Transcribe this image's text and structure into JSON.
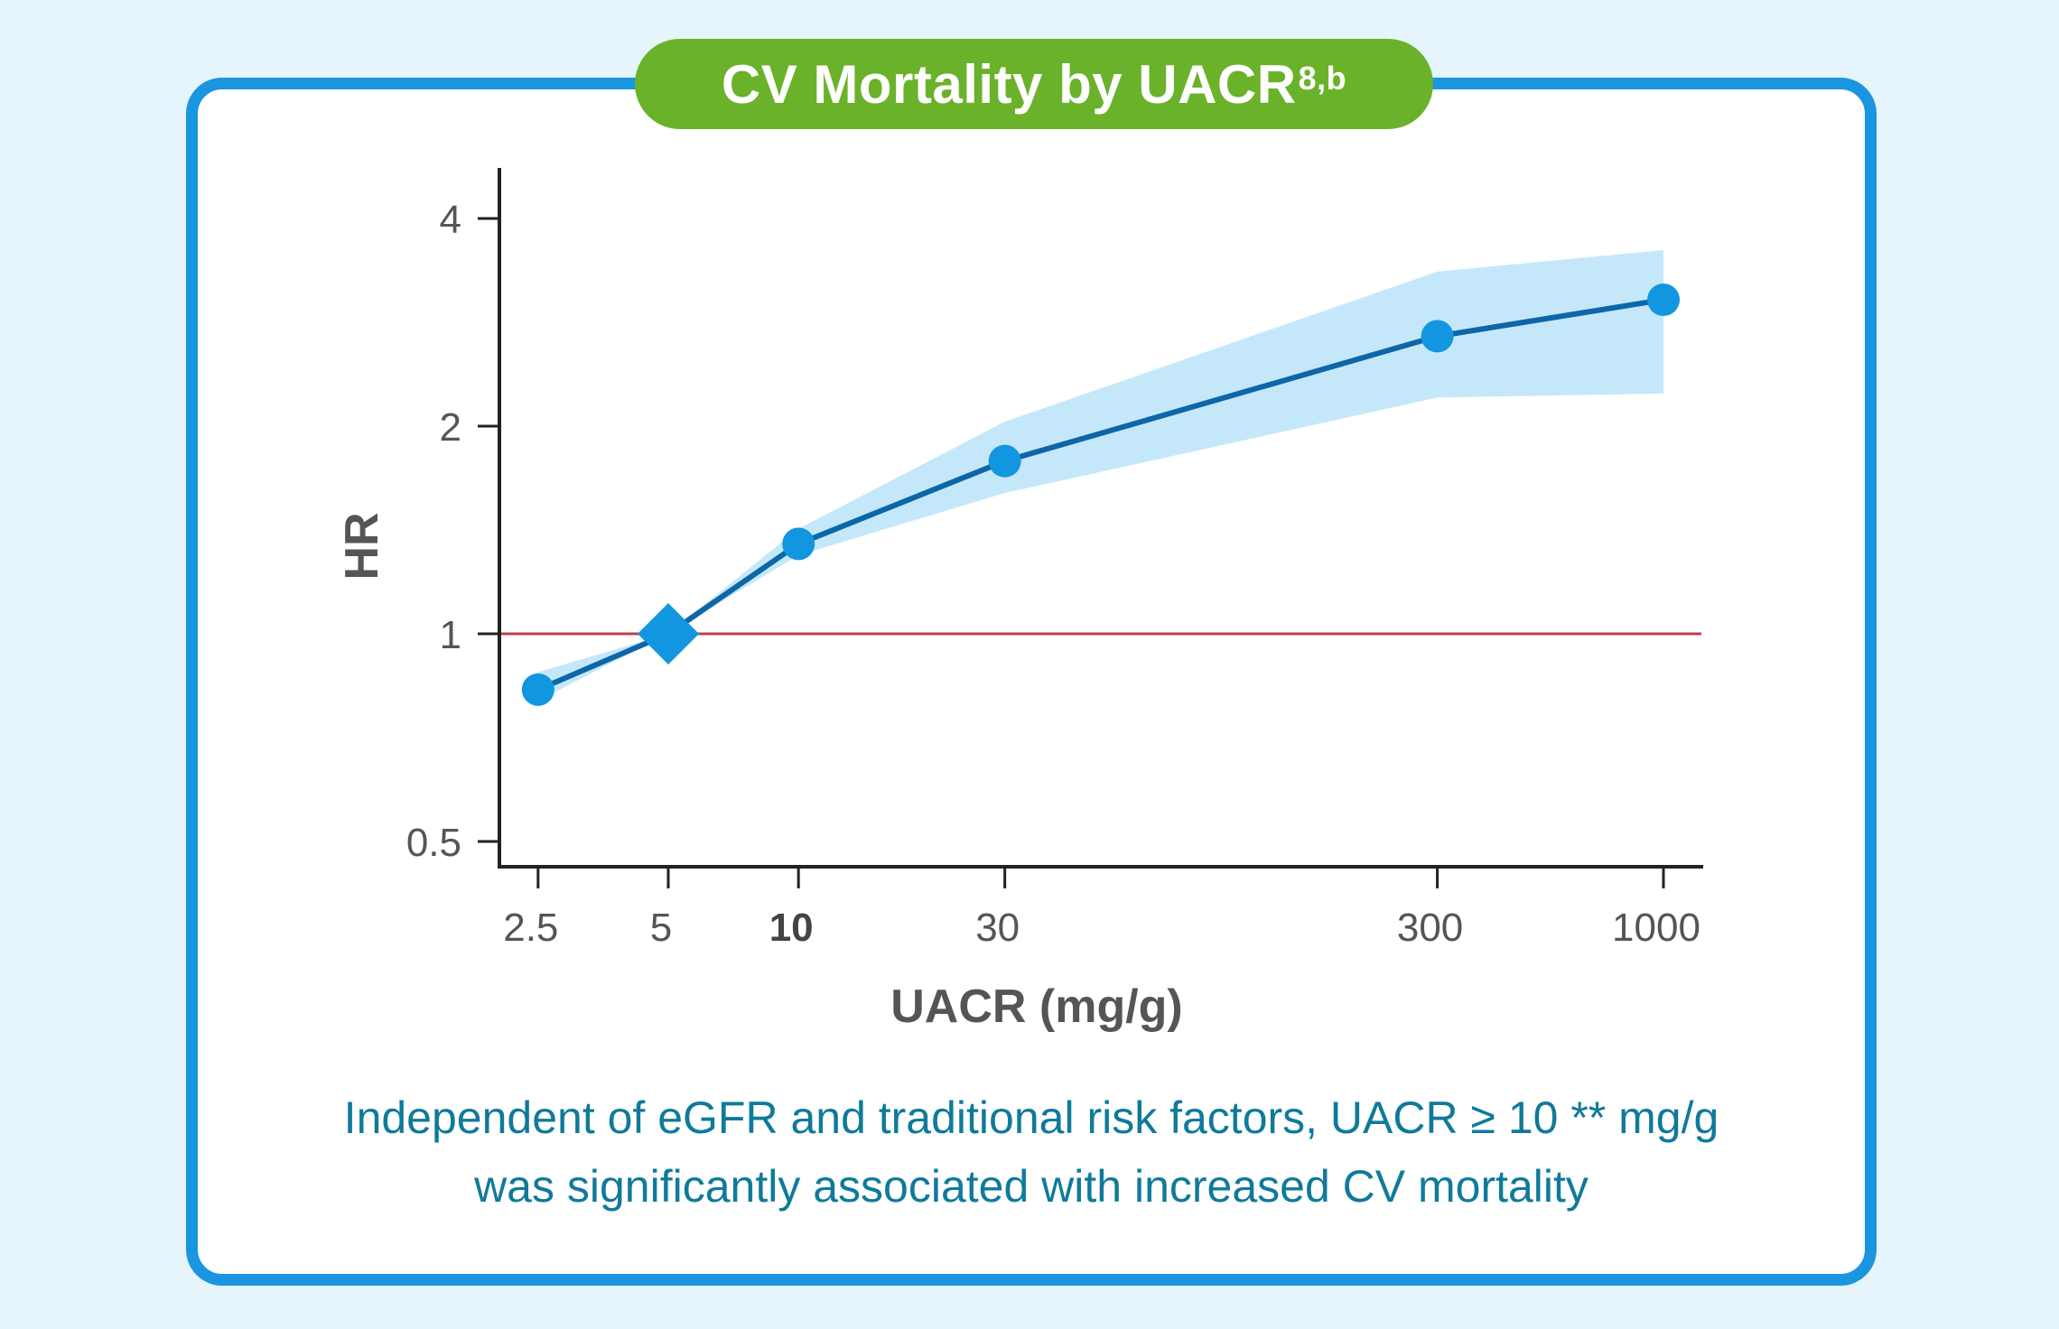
{
  "title": {
    "text": "CV Mortality by UACR",
    "superscript": "8,b"
  },
  "chart_data": {
    "type": "line",
    "x_scale": "log",
    "y_scale": "log",
    "xlabel": "UACR (mg/g)",
    "ylabel": "HR",
    "x_ticks": [
      {
        "value": 2.5,
        "label": "2.5",
        "bold": false
      },
      {
        "value": 5,
        "label": "5",
        "bold": false
      },
      {
        "value": 10,
        "label": "10",
        "bold": true
      },
      {
        "value": 30,
        "label": "30",
        "bold": false
      },
      {
        "value": 300,
        "label": "300",
        "bold": false
      },
      {
        "value": 1000,
        "label": "1000",
        "bold": false
      }
    ],
    "y_ticks": [
      {
        "value": 0.5,
        "label": "0.5"
      },
      {
        "value": 1,
        "label": "1"
      },
      {
        "value": 2,
        "label": "2"
      },
      {
        "value": 4,
        "label": "4"
      }
    ],
    "reference_line": {
      "y": 1,
      "color": "#c0404a"
    },
    "points": [
      {
        "x": 2.5,
        "y": 0.83,
        "lower": 0.8,
        "upper": 0.88,
        "marker": "circle"
      },
      {
        "x": 5,
        "y": 1.0,
        "lower": 1.0,
        "upper": 1.0,
        "marker": "diamond"
      },
      {
        "x": 10,
        "y": 1.35,
        "lower": 1.3,
        "upper": 1.42,
        "marker": "circle"
      },
      {
        "x": 30,
        "y": 1.78,
        "lower": 1.6,
        "upper": 2.03,
        "marker": "circle"
      },
      {
        "x": 300,
        "y": 2.7,
        "lower": 2.2,
        "upper": 3.35,
        "marker": "circle"
      },
      {
        "x": 1000,
        "y": 3.05,
        "lower": 2.23,
        "upper": 3.6,
        "marker": "circle"
      }
    ],
    "colors": {
      "line": "#0d66a6",
      "marker": "#1296df",
      "band": "#c4e8fa",
      "axis": "#222222"
    }
  },
  "caption": {
    "line1": "Independent of eGFR and traditional risk factors, UACR ≥ 10 ** mg/g",
    "line2": "was significantly associated with increased CV mortality"
  }
}
